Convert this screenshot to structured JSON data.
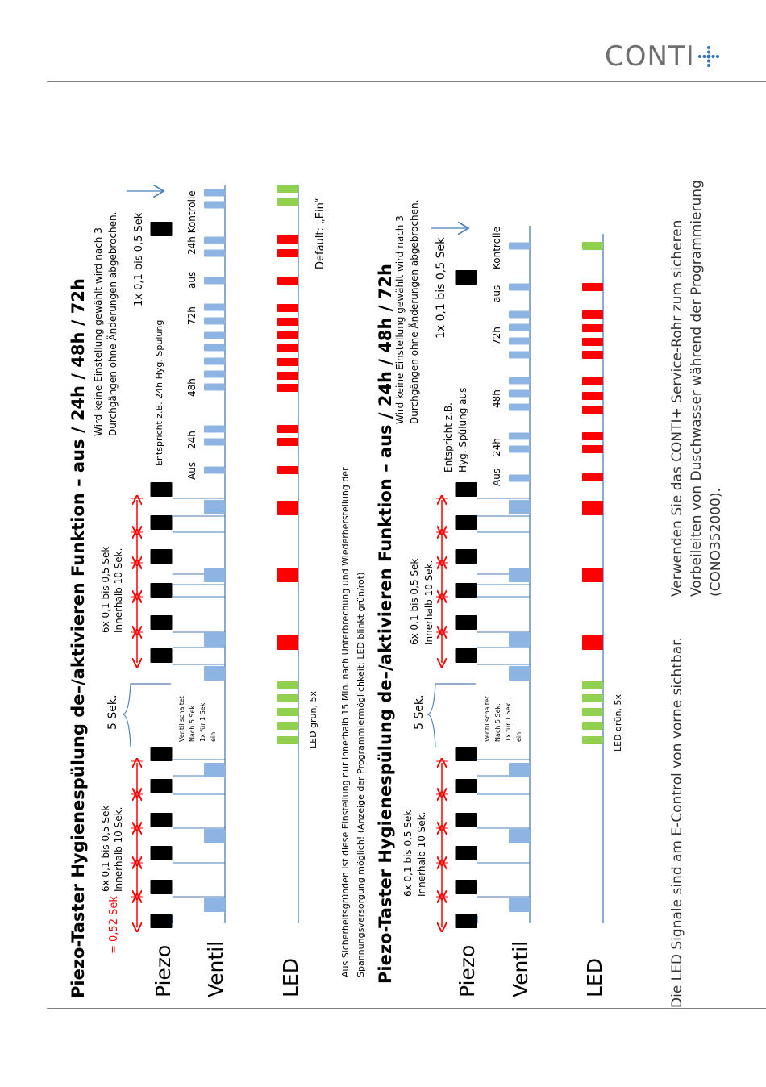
{
  "header": {
    "brand": "CONTI"
  },
  "colors": {
    "piezo": "#000000",
    "ventil": "#8eb4e3",
    "led_red": "#ff0000",
    "led_green": "#92d050",
    "axis": "#4a7ebb",
    "arrow_red": "#ff0000"
  },
  "diagram1": {
    "title": "Piezo-Taster Hygienespülung de–/aktivieren Funktion – aus / 24h / 48h / 72h",
    "legend_value": "= 0,52 Sek",
    "rows": {
      "piezo": "Piezo",
      "ventil": "Ventil",
      "led": "LED"
    },
    "group1": [
      "6x 0,1 bis 0,5 Sek",
      "Innerhalb 10 Sek."
    ],
    "wait": "5 Sek.",
    "ventil_note": [
      "Ventil schaltet",
      "Nach 5 Sek.",
      "1x für 1 Sek.",
      "ein"
    ],
    "led_note": "LED grün, 5x",
    "group2": [
      "6x 0,1 bis 0,5 Sek",
      "Innerhalb  10 Sek."
    ],
    "entspricht": "Entspricht z.B. 24h Hyg. Spülung",
    "states": [
      "Aus",
      "24h",
      "48h",
      "72h",
      "aus",
      "24h Kontrolle"
    ],
    "confirm": "1x 0,1 bis 0,5 Sek",
    "abort_note": [
      "Wird  keine Einstellung gewählt wird nach 3",
      "Durchgängen ohne Änderungen abgebrochen."
    ],
    "default": "Default: „Ein“"
  },
  "safety_note": [
    "Aus Sicherheitsgründen ist diese Einstellung nur innerhalb 15 Min. nach Unterbrechung und Wiederherstellung der",
    "Spannungsversorgung möglich! (Anzeige der Programmiermöglichkeit: LED blinkt grün/rot)"
  ],
  "diagram2": {
    "title": "Piezo-Taster Hygienespülung de–/aktivieren Funktion – aus / 24h / 48h / 72h",
    "rows": {
      "piezo": "Piezo",
      "ventil": "Ventil",
      "led": "LED"
    },
    "group1": [
      "6x 0,1 bis 0,5 Sek",
      "Innerhalb 10 Sek."
    ],
    "wait": "5 Sek.",
    "ventil_note": [
      "Ventil schaltet",
      "Nach 5 Sek.",
      "1x für 1 Sek.",
      "ein"
    ],
    "led_note": "LED grün, 5x",
    "group2": [
      "6x 0,1 bis 0,5 Sek",
      "Innerhalb 10 Sek."
    ],
    "entspricht": [
      "Entspricht z.B.",
      "Hyg. Spülung aus"
    ],
    "states": [
      "Aus",
      "24h",
      "48h",
      "72h",
      "aus",
      "Kontrolle"
    ],
    "confirm": "1x 0,1 bis 0,5 Sek",
    "abort_note": [
      "Wird  keine Einstellung gewählt wird nach 3",
      "Durchgängen ohne Änderungen abgebrochen."
    ]
  },
  "footer_left": "Die LED Signale sind am E-Control von vorne sichtbar.",
  "footer_right": [
    "Verwenden Sie das CONTI+ Service-Rohr zum sicheren",
    "Vorbeileiten von Duschwasser während der Programmierung",
    "(CONO352000)."
  ]
}
